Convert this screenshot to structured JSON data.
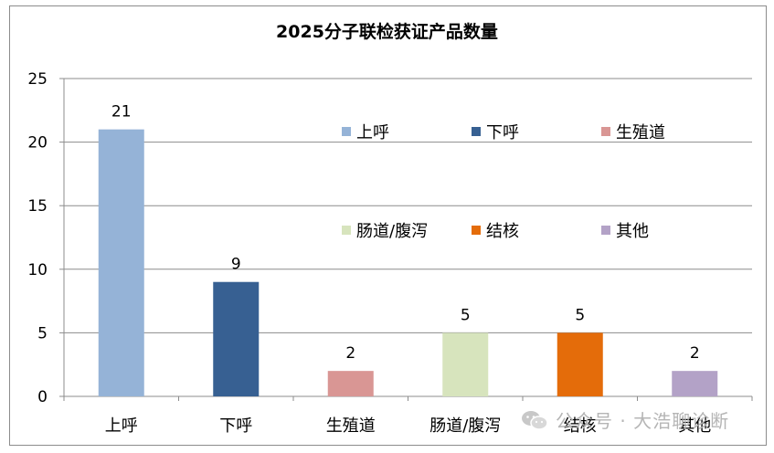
{
  "chart_data": {
    "type": "bar",
    "title": "2025分子联检获证产品数量",
    "categories": [
      "上呼",
      "下呼",
      "生殖道",
      "肠道/腹泻",
      "结核",
      "其他"
    ],
    "values": [
      21,
      9,
      2,
      5,
      5,
      2
    ],
    "colors": [
      "#95b3d7",
      "#376092",
      "#d99694",
      "#d7e4bd",
      "#e46c0a",
      "#b3a2c7"
    ],
    "ylim": [
      0,
      25
    ],
    "yticks": [
      0,
      5,
      10,
      15,
      20,
      25
    ],
    "grid": true,
    "legend": [
      {
        "label": "上呼",
        "color": "#95b3d7"
      },
      {
        "label": "下呼",
        "color": "#376092"
      },
      {
        "label": "生殖道",
        "color": "#d99694"
      },
      {
        "label": "肠道/腹泻",
        "color": "#d7e4bd"
      },
      {
        "label": "结核",
        "color": "#e46c0a"
      },
      {
        "label": "其他",
        "color": "#b3a2c7"
      }
    ],
    "legend_position": "inside-top-right"
  },
  "watermark": {
    "text": "公众号 · 大浩聊诊断",
    "icon": "wechat-icon"
  }
}
